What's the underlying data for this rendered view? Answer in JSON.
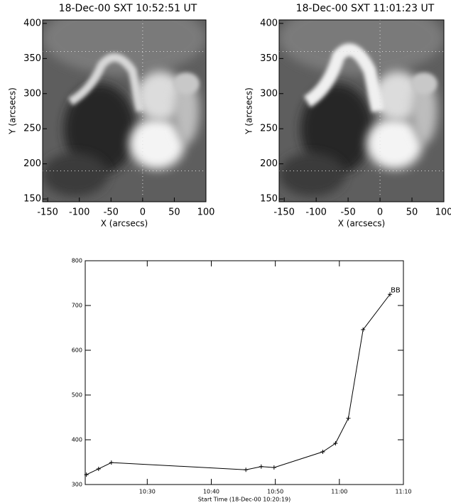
{
  "chart_data": [
    {
      "type": "image",
      "title": "18-Dec-00 SXT 10:52:51 UT",
      "xlabel": "X (arcsecs)",
      "ylabel": "Y (arcsecs)",
      "xlim": [
        -158,
        100
      ],
      "ylim": [
        146,
        405
      ],
      "xticks": [
        -150,
        -100,
        -50,
        0,
        50,
        100
      ],
      "yticks": [
        150,
        200,
        250,
        300,
        350,
        400
      ],
      "guides": {
        "x": [
          0
        ],
        "y": [
          360,
          190
        ]
      }
    },
    {
      "type": "image",
      "title": "18-Dec-00 SXT 11:01:23 UT",
      "xlabel": "X (arcsecs)",
      "ylabel": "Y (arcsecs)",
      "xlim": [
        -158,
        100
      ],
      "ylim": [
        146,
        405
      ],
      "xticks": [
        -150,
        -100,
        -50,
        0,
        50,
        100
      ],
      "yticks": [
        150,
        200,
        250,
        300,
        350,
        400
      ],
      "guides": {
        "x": [
          0
        ],
        "y": [
          360,
          190
        ]
      }
    },
    {
      "type": "line",
      "xlabel": "Start Time (18-Dec-00 10:20:19)",
      "x": [
        "10:20:30",
        "10:22:24",
        "10:24:24",
        "10:45:24",
        "10:47:48",
        "10:49:48",
        "10:57:24",
        "10:59:24",
        "11:01:24",
        "11:03:42",
        "11:07:54"
      ],
      "values": [
        322,
        335,
        349,
        333,
        340,
        338,
        373,
        392,
        448,
        646,
        725
      ],
      "color": "#000000",
      "xlim": [
        "10:20:19",
        "11:10"
      ],
      "xticks": [
        "10:30",
        "10:40",
        "10:50",
        "11:00",
        "11:10"
      ],
      "ylim": [
        300,
        800
      ],
      "yticks": [
        300,
        400,
        500,
        600,
        700,
        800
      ],
      "annotation": "BB"
    }
  ]
}
